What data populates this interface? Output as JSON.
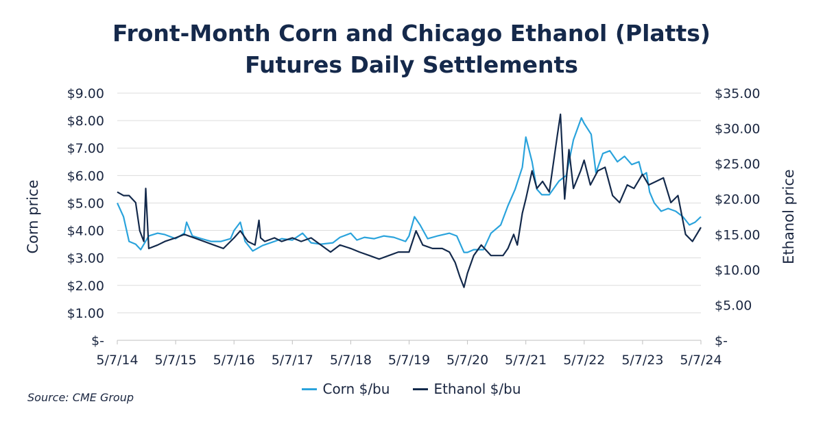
{
  "chart_data": {
    "type": "line",
    "title": [
      "Front-Month Corn and Chicago Ethanol (Platts)",
      "Futures Daily Settlements"
    ],
    "ylabel": "Corn price",
    "y2label": "Ethanol price",
    "ylim": [
      0,
      9
    ],
    "y2lim": [
      0,
      35
    ],
    "yticks": [
      "$-",
      "$1.00",
      "$2.00",
      "$3.00",
      "$4.00",
      "$5.00",
      "$6.00",
      "$7.00",
      "$8.00",
      "$9.00"
    ],
    "y2ticks": [
      "$-",
      "$5.00",
      "$10.00",
      "$15.00",
      "$20.00",
      "$25.00",
      "$30.00",
      "$35.00"
    ],
    "xticks": [
      "5/7/14",
      "5/7/15",
      "5/7/16",
      "5/7/17",
      "5/7/18",
      "5/7/19",
      "5/7/20",
      "5/7/21",
      "5/7/22",
      "5/7/23",
      "5/7/24"
    ],
    "grid": true,
    "legend_position": "bottom",
    "series": [
      {
        "name": "Corn $/bu",
        "axis": "left",
        "color": "#2aa3dc",
        "x": [
          "2014-05-07",
          "2014-06-15",
          "2014-07-20",
          "2014-08-30",
          "2014-10-01",
          "2014-11-20",
          "2015-01-15",
          "2015-03-01",
          "2015-05-07",
          "2015-07-01",
          "2015-07-15",
          "2015-08-20",
          "2015-10-15",
          "2015-12-15",
          "2016-02-15",
          "2016-04-15",
          "2016-05-07",
          "2016-06-15",
          "2016-07-15",
          "2016-09-01",
          "2016-11-01",
          "2017-01-15",
          "2017-03-01",
          "2017-05-07",
          "2017-07-10",
          "2017-09-01",
          "2017-11-01",
          "2018-01-15",
          "2018-03-01",
          "2018-05-07",
          "2018-06-15",
          "2018-08-01",
          "2018-10-01",
          "2018-12-01",
          "2019-02-01",
          "2019-04-15",
          "2019-05-07",
          "2019-06-10",
          "2019-07-15",
          "2019-09-01",
          "2019-11-01",
          "2020-01-15",
          "2020-03-01",
          "2020-04-15",
          "2020-05-07",
          "2020-06-15",
          "2020-08-15",
          "2020-10-01",
          "2020-12-01",
          "2021-01-15",
          "2021-03-01",
          "2021-04-15",
          "2021-05-07",
          "2021-06-15",
          "2021-07-15",
          "2021-08-15",
          "2021-10-01",
          "2021-12-01",
          "2022-01-15",
          "2022-03-01",
          "2022-04-20",
          "2022-05-07",
          "2022-06-20",
          "2022-07-20",
          "2022-09-01",
          "2022-10-15",
          "2022-12-01",
          "2023-01-15",
          "2023-03-01",
          "2023-04-15",
          "2023-05-07",
          "2023-06-01",
          "2023-06-21",
          "2023-07-20",
          "2023-09-01",
          "2023-10-15",
          "2023-12-01",
          "2024-01-15",
          "2024-02-25",
          "2024-04-01",
          "2024-05-07"
        ],
        "values": [
          5.0,
          4.5,
          3.6,
          3.5,
          3.3,
          3.8,
          3.9,
          3.85,
          3.7,
          3.9,
          4.3,
          3.8,
          3.7,
          3.6,
          3.6,
          3.7,
          4.0,
          4.3,
          3.6,
          3.25,
          3.45,
          3.6,
          3.7,
          3.65,
          3.9,
          3.55,
          3.5,
          3.55,
          3.75,
          3.9,
          3.65,
          3.75,
          3.7,
          3.8,
          3.75,
          3.6,
          3.8,
          4.5,
          4.2,
          3.7,
          3.8,
          3.9,
          3.8,
          3.2,
          3.2,
          3.3,
          3.3,
          3.9,
          4.2,
          4.9,
          5.5,
          6.3,
          7.4,
          6.5,
          5.5,
          5.3,
          5.3,
          5.8,
          6.0,
          7.3,
          8.1,
          7.9,
          7.5,
          6.1,
          6.8,
          6.9,
          6.5,
          6.7,
          6.4,
          6.5,
          6.0,
          6.1,
          5.4,
          5.0,
          4.7,
          4.8,
          4.7,
          4.5,
          4.2,
          4.3,
          4.5
        ]
      },
      {
        "name": "Ethanol $/bu",
        "axis": "right",
        "color": "#13294b",
        "x": [
          "2014-05-07",
          "2014-06-15",
          "2014-07-20",
          "2014-08-30",
          "2014-09-25",
          "2014-10-20",
          "2014-11-01",
          "2014-11-20",
          "2015-01-15",
          "2015-03-01",
          "2015-05-07",
          "2015-07-01",
          "2015-09-01",
          "2015-11-01",
          "2016-01-01",
          "2016-03-01",
          "2016-05-07",
          "2016-06-15",
          "2016-08-01",
          "2016-09-15",
          "2016-10-10",
          "2016-10-20",
          "2016-11-15",
          "2017-01-15",
          "2017-03-01",
          "2017-05-07",
          "2017-07-01",
          "2017-09-01",
          "2017-11-01",
          "2018-01-01",
          "2018-03-01",
          "2018-05-07",
          "2018-07-01",
          "2018-09-01",
          "2018-11-01",
          "2019-01-01",
          "2019-03-01",
          "2019-05-07",
          "2019-06-20",
          "2019-08-01",
          "2019-10-01",
          "2019-12-01",
          "2020-01-15",
          "2020-02-20",
          "2020-03-20",
          "2020-04-15",
          "2020-05-07",
          "2020-06-15",
          "2020-08-01",
          "2020-10-01",
          "2020-12-15",
          "2021-01-15",
          "2021-02-20",
          "2021-03-15",
          "2021-04-15",
          "2021-05-07",
          "2021-06-15",
          "2021-07-15",
          "2021-08-20",
          "2021-10-01",
          "2021-11-20",
          "2021-12-10",
          "2022-01-05",
          "2022-02-01",
          "2022-03-01",
          "2022-04-15",
          "2022-05-07",
          "2022-06-15",
          "2022-08-01",
          "2022-09-15",
          "2022-11-01",
          "2022-12-15",
          "2023-02-01",
          "2023-03-15",
          "2023-05-07",
          "2023-06-15",
          "2023-08-01",
          "2023-09-15",
          "2023-11-01",
          "2023-12-15",
          "2024-02-01",
          "2024-03-15",
          "2024-05-07"
        ],
        "values": [
          21.0,
          20.5,
          20.5,
          19.5,
          15.5,
          14.0,
          21.5,
          13.0,
          13.5,
          14.0,
          14.5,
          15.0,
          14.5,
          14.0,
          13.5,
          13.0,
          14.5,
          15.5,
          14.0,
          13.5,
          17.0,
          14.5,
          14.0,
          14.5,
          14.0,
          14.5,
          14.0,
          14.5,
          13.5,
          12.5,
          13.5,
          13.0,
          12.5,
          12.0,
          11.5,
          12.0,
          12.5,
          12.5,
          15.5,
          13.5,
          13.0,
          13.0,
          12.5,
          11.0,
          9.0,
          7.5,
          9.5,
          12.0,
          13.5,
          12.0,
          12.0,
          13.0,
          15.0,
          13.5,
          18.0,
          20.0,
          24.0,
          21.5,
          22.5,
          21.0,
          29.0,
          32.0,
          20.0,
          27.0,
          21.5,
          24.0,
          25.5,
          22.0,
          24.0,
          24.5,
          20.5,
          19.5,
          22.0,
          21.5,
          23.5,
          22.0,
          22.5,
          23.0,
          19.5,
          20.5,
          15.0,
          14.0,
          16.0
        ]
      }
    ]
  },
  "legend": [
    {
      "label": "Corn $/bu",
      "color": "#2aa3dc"
    },
    {
      "label": "Ethanol $/bu",
      "color": "#13294b"
    }
  ],
  "source": "Source: CME Group"
}
